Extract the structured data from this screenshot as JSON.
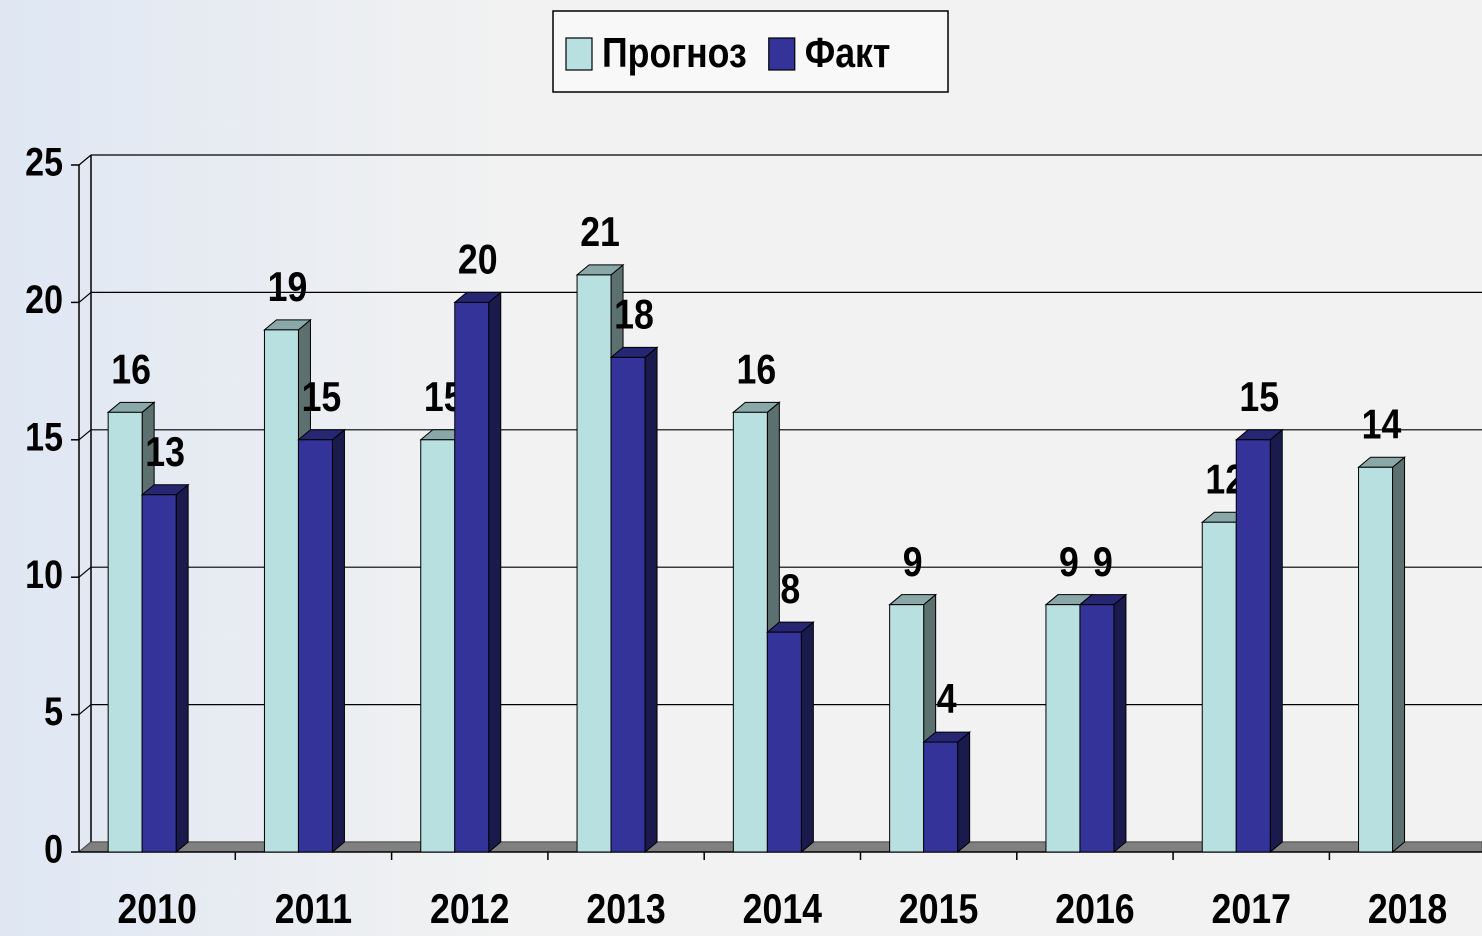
{
  "chart_data": {
    "type": "bar3d",
    "categories": [
      "2010",
      "2011",
      "2012",
      "2013",
      "2014",
      "2015",
      "2016",
      "2017",
      "2018"
    ],
    "series": [
      {
        "name": "Прогноз",
        "color": "#b8e0e0",
        "values": [
          16,
          19,
          15,
          21,
          16,
          9,
          9,
          12,
          14
        ]
      },
      {
        "name": "Факт",
        "color": "#333399",
        "values": [
          13,
          15,
          20,
          18,
          8,
          4,
          9,
          15,
          null
        ]
      }
    ],
    "ylim": [
      0,
      25
    ],
    "yticks": [
      0,
      5,
      10,
      15,
      20,
      25
    ],
    "grid": true,
    "legend": "top"
  }
}
